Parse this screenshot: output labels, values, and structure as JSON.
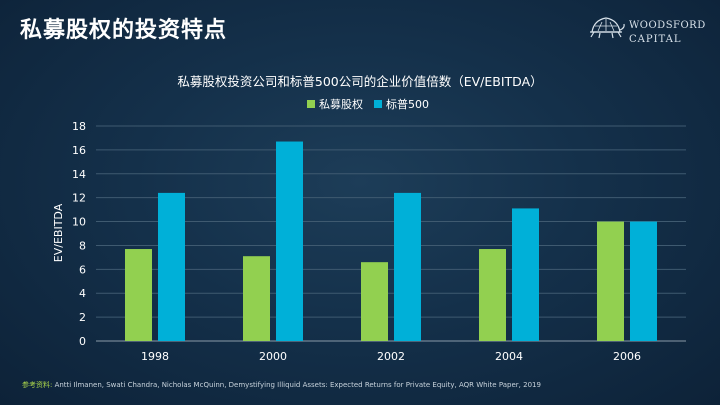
{
  "slide": {
    "title": "私募股权的投资特点",
    "logo": {
      "line1": "WOODSFORD",
      "line2": "CAPITAL"
    },
    "source_label": "参考资料:",
    "source_text": " Antti Ilmanen,  Swati Chandra,  Nicholas McQuinn, Demystifying  Illiquid  Assets: Expected  Returns for Private Equity, AQR White Paper, 2019"
  },
  "colors": {
    "private_equity": "#92d050",
    "sp500": "#00b0d8",
    "background": "#14304a",
    "grid": "#3f5a70"
  },
  "chart_data": {
    "type": "bar",
    "title": "私募股权投资公司和标普500公司的企业价值倍数（EV/EBITDA）",
    "xlabel": "",
    "ylabel": "EV/EBITDA",
    "categories": [
      "1998",
      "2000",
      "2002",
      "2004",
      "2006"
    ],
    "series": [
      {
        "name": "私募股权",
        "values": [
          7.7,
          7.1,
          6.6,
          7.7,
          10.0
        ]
      },
      {
        "name": "标普500",
        "values": [
          12.4,
          16.7,
          12.4,
          11.1,
          10.0
        ]
      }
    ],
    "ylim": [
      0,
      18
    ],
    "yticks": [
      0,
      2,
      4,
      6,
      8,
      10,
      12,
      14,
      16,
      18
    ],
    "grid": true,
    "legend": "top-center"
  }
}
